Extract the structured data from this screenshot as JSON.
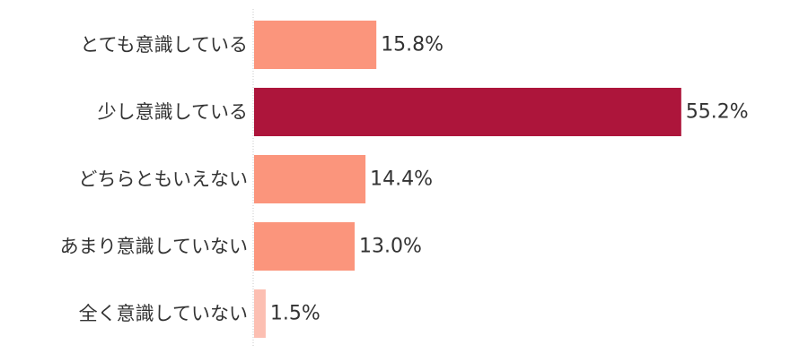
{
  "chart_data": {
    "type": "bar",
    "orientation": "horizontal",
    "title": "",
    "xlabel": "",
    "ylabel": "",
    "xlim": [
      0,
      60
    ],
    "grid": false,
    "categories": [
      "とても意識している",
      "少し意識している",
      "どちらともいえない",
      "あまり意識していない",
      "全く意識していない"
    ],
    "values": [
      15.8,
      55.2,
      14.4,
      13.0,
      1.5
    ],
    "value_labels": [
      "15.8%",
      "55.2%",
      "14.4%",
      "13.0%",
      "1.5%"
    ],
    "bar_colors": [
      "#fb957c",
      "#ad153b",
      "#fb957c",
      "#fb957c",
      "#fcbfb2"
    ],
    "axis_line_color": "#c8c8c8"
  }
}
